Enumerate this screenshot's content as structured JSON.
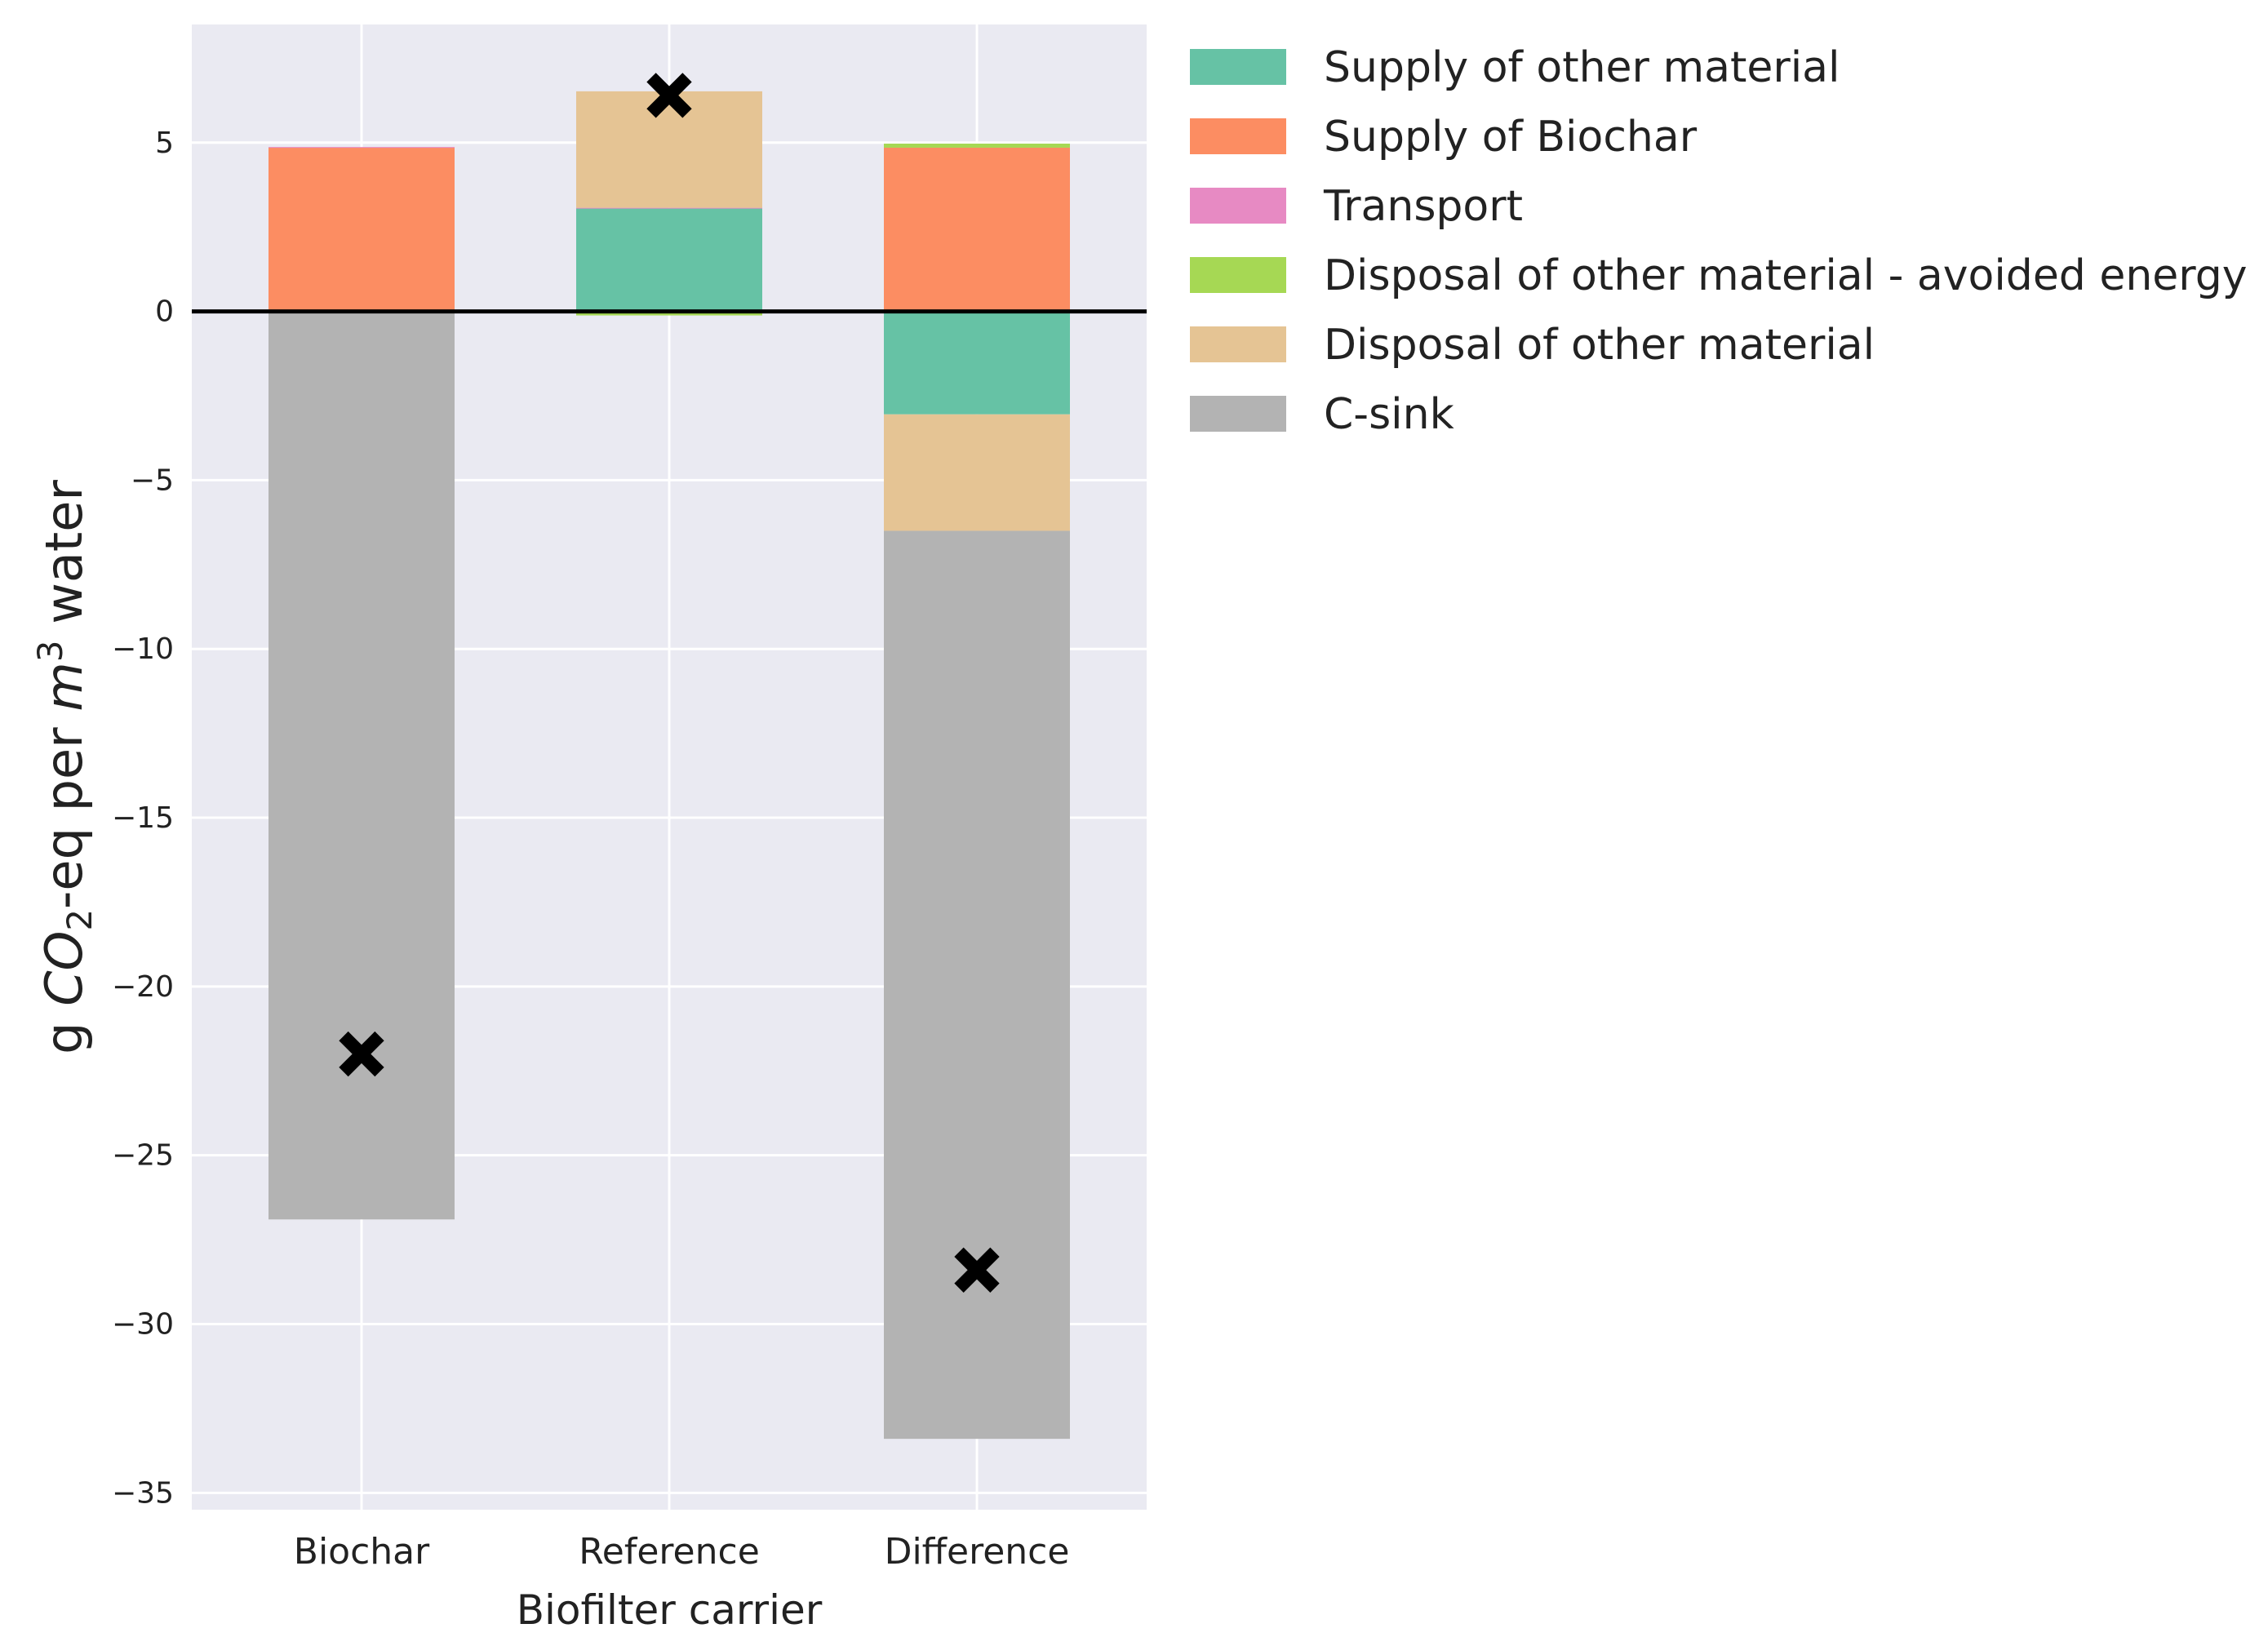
{
  "chart_data": {
    "type": "bar",
    "stacked": true,
    "title": "",
    "xlabel": "Biofilter carrier",
    "ylabel": {
      "prefix": "g ",
      "italic1": "CO",
      "sub": "2",
      "middle": "-eq per ",
      "italic2": "m",
      "sup": "3",
      "suffix": " water"
    },
    "categories": [
      "Biochar",
      "Reference",
      "Difference"
    ],
    "ylim": [
      -35.5,
      8.5
    ],
    "yticks": [
      5,
      0,
      -5,
      -10,
      -15,
      -20,
      -25,
      -30,
      -35
    ],
    "ytick_labels": [
      "5",
      "0",
      "−5",
      "−10",
      "−15",
      "−20",
      "−25",
      "−30",
      "−35"
    ],
    "grid": true,
    "zero_line": true,
    "legend_position": "outside-right",
    "series": [
      {
        "name": "Supply of other material",
        "color": "#66c2a5",
        "values": [
          0,
          3.05,
          -3.05
        ]
      },
      {
        "name": "Supply of Biochar",
        "color": "#fc8d62",
        "values": [
          4.85,
          0,
          4.85
        ]
      },
      {
        "name": "Transport",
        "color": "#e78ac3",
        "values": [
          0.02,
          0.02,
          0
        ]
      },
      {
        "name": "Disposal of other material - avoided energy",
        "color": "#a6d854",
        "values": [
          0,
          -0.12,
          0.12
        ]
      },
      {
        "name": "Disposal of other material",
        "color": "#e5c494",
        "values": [
          0,
          3.45,
          -3.45
        ]
      },
      {
        "name": "C-sink",
        "color": "#b3b3b3",
        "values": [
          -26.9,
          0,
          -26.9
        ]
      }
    ],
    "net_markers": {
      "name": "net total",
      "symbol": "x",
      "values": [
        -22.0,
        6.4,
        -28.4
      ]
    }
  }
}
